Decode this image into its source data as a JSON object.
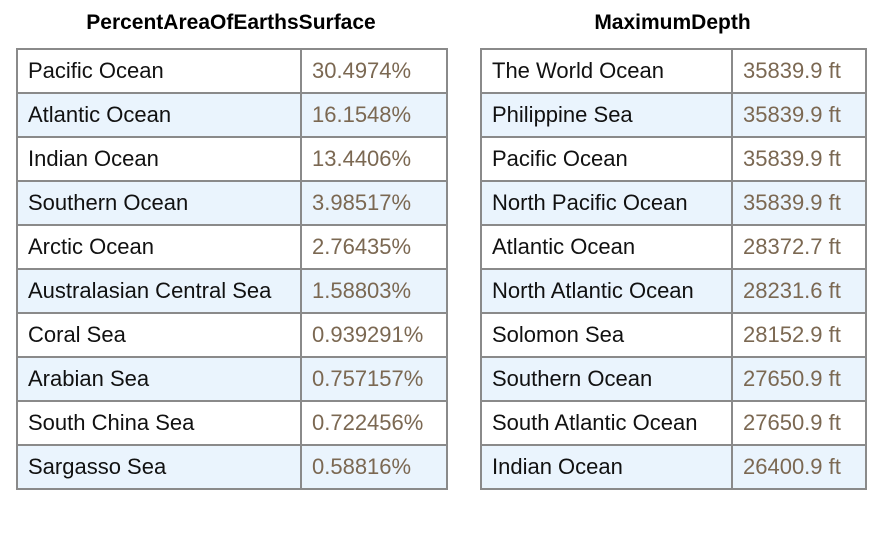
{
  "left_table": {
    "title": "PercentAreaOfEarthsSurface",
    "rows": [
      {
        "name": "Pacific Ocean",
        "value": "30.4974%"
      },
      {
        "name": "Atlantic Ocean",
        "value": "16.1548%"
      },
      {
        "name": "Indian Ocean",
        "value": "13.4406%"
      },
      {
        "name": "Southern Ocean",
        "value": "3.98517%"
      },
      {
        "name": "Arctic Ocean",
        "value": "2.76435%"
      },
      {
        "name": "Australasian Central Sea",
        "value": "1.58803%"
      },
      {
        "name": "Coral Sea",
        "value": "0.939291%"
      },
      {
        "name": "Arabian Sea",
        "value": "0.757157%"
      },
      {
        "name": "South China Sea",
        "value": "0.722456%"
      },
      {
        "name": "Sargasso Sea",
        "value": "0.58816%"
      }
    ]
  },
  "right_table": {
    "title": "MaximumDepth",
    "rows": [
      {
        "name": "The World Ocean",
        "value": "35839.9 ft"
      },
      {
        "name": "Philippine Sea",
        "value": "35839.9 ft"
      },
      {
        "name": "Pacific Ocean",
        "value": "35839.9 ft"
      },
      {
        "name": "North Pacific Ocean",
        "value": "35839.9 ft"
      },
      {
        "name": "Atlantic Ocean",
        "value": "28372.7 ft"
      },
      {
        "name": "North Atlantic Ocean",
        "value": "28231.6 ft"
      },
      {
        "name": "Solomon Sea",
        "value": "28152.9 ft"
      },
      {
        "name": "Southern Ocean",
        "value": "27650.9 ft"
      },
      {
        "name": "South Atlantic Ocean",
        "value": "27650.9 ft"
      },
      {
        "name": "Indian Ocean",
        "value": "26400.9 ft"
      }
    ]
  },
  "colors": {
    "row_alt_background": "#eaf4fd",
    "value_text": "#7b6852",
    "border": "#8a8a8a"
  }
}
